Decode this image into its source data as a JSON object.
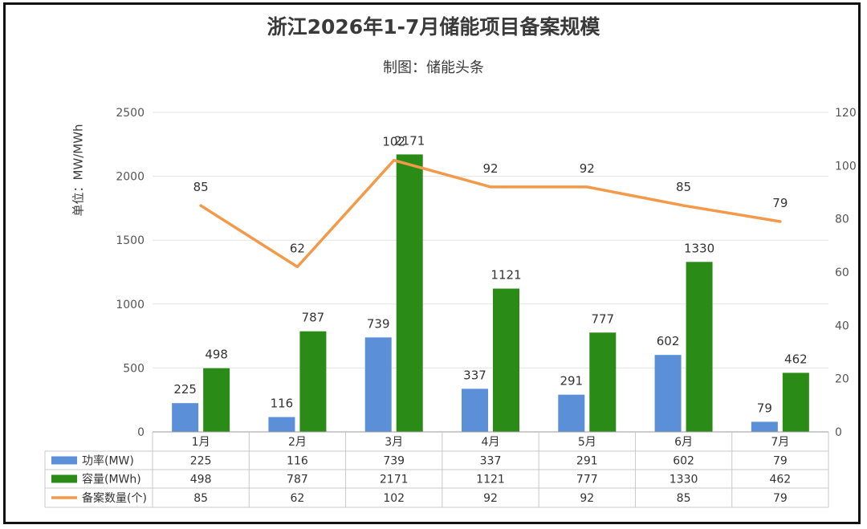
{
  "title": "浙江2026年1-7月储能项目备案规模",
  "subtitle": "制图：储能头条",
  "colors": {
    "power": "#5b8fd8",
    "capacity": "#2a8c17",
    "count": "#f29a4a"
  },
  "chart_data": {
    "type": "bar",
    "categories": [
      "1月",
      "2月",
      "3月",
      "4月",
      "5月",
      "6月",
      "7月"
    ],
    "y_left": {
      "label": "单位：MW/MWh",
      "ylim": [
        0,
        2500
      ],
      "ticks": [
        "0",
        "500",
        "1000",
        "1500",
        "2000",
        "2500"
      ]
    },
    "y_right": {
      "ylim": [
        0,
        120
      ],
      "ticks": [
        "0",
        "20",
        "40",
        "60",
        "80",
        "100",
        "120"
      ]
    },
    "grid": true,
    "legend": "data-table",
    "series": [
      {
        "name": "功率(MW)",
        "type": "bar",
        "axis": "left",
        "values": [
          225,
          116,
          739,
          337,
          291,
          602,
          79
        ]
      },
      {
        "name": "容量(MWh)",
        "type": "bar",
        "axis": "left",
        "values": [
          498,
          787,
          2171,
          1121,
          777,
          1330,
          462
        ]
      },
      {
        "name": "备案数量(个)",
        "type": "line",
        "axis": "right",
        "values": [
          85,
          62,
          102,
          92,
          92,
          85,
          79
        ]
      }
    ]
  }
}
